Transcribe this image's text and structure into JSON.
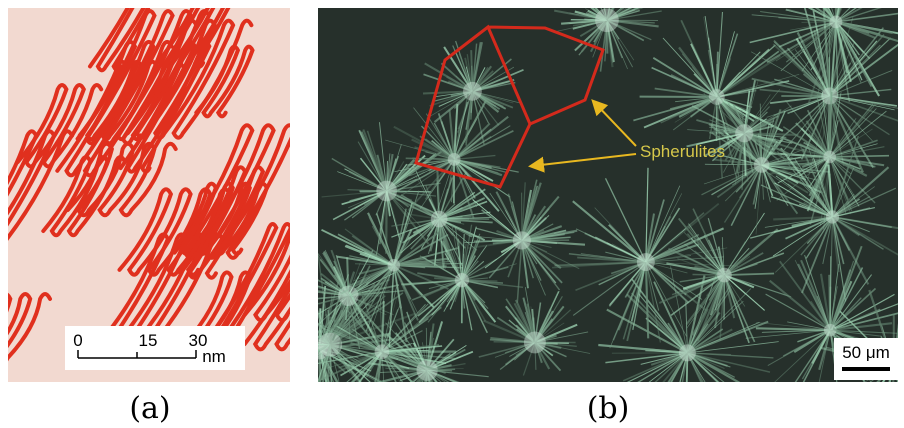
{
  "panels": [
    {
      "label": "(a)",
      "scale_bar": {
        "ticks": [
          "0",
          "15",
          "30"
        ],
        "unit": "nm"
      }
    },
    {
      "label": "(b)",
      "annotation": "Spherulites",
      "scale_bar": "50 μm"
    }
  ]
}
